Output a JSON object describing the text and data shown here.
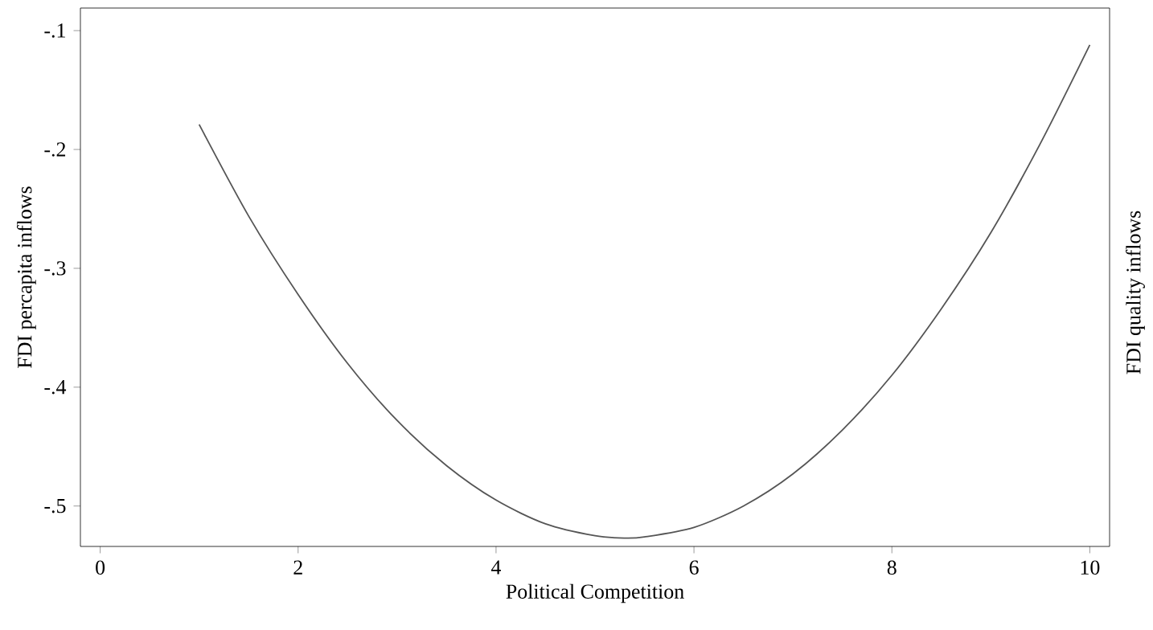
{
  "chart_data": {
    "type": "line",
    "xlabel": "Political Competition",
    "ylabel": "FDI percapita inflows",
    "y2label": "FDI quality inflows",
    "x": [
      1,
      1.5,
      2,
      2.5,
      3,
      3.5,
      4,
      4.5,
      5,
      5.3,
      5.5,
      6,
      6.5,
      7,
      7.5,
      8,
      8.5,
      9,
      9.5,
      10
    ],
    "series": [
      {
        "color": "#555555",
        "values": [
          -0.179,
          -0.256,
          -0.322,
          -0.38,
          -0.428,
          -0.466,
          -0.495,
          -0.515,
          -0.525,
          -0.527,
          -0.526,
          -0.518,
          -0.5,
          -0.473,
          -0.436,
          -0.39,
          -0.334,
          -0.27,
          -0.195,
          -0.112
        ]
      }
    ],
    "xlim": [
      -0.2,
      10.2
    ],
    "ylim": [
      -0.534,
      -0.081
    ],
    "xticks": [
      0,
      2,
      4,
      6,
      8,
      10
    ],
    "yticks": [
      {
        "value": -0.5,
        "label": "-.5"
      },
      {
        "value": -0.4,
        "label": "-.4"
      },
      {
        "value": -0.3,
        "label": "-.3"
      },
      {
        "value": -0.2,
        "label": "-.2"
      },
      {
        "value": -0.1,
        "label": "-.1"
      }
    ],
    "grid": false
  }
}
